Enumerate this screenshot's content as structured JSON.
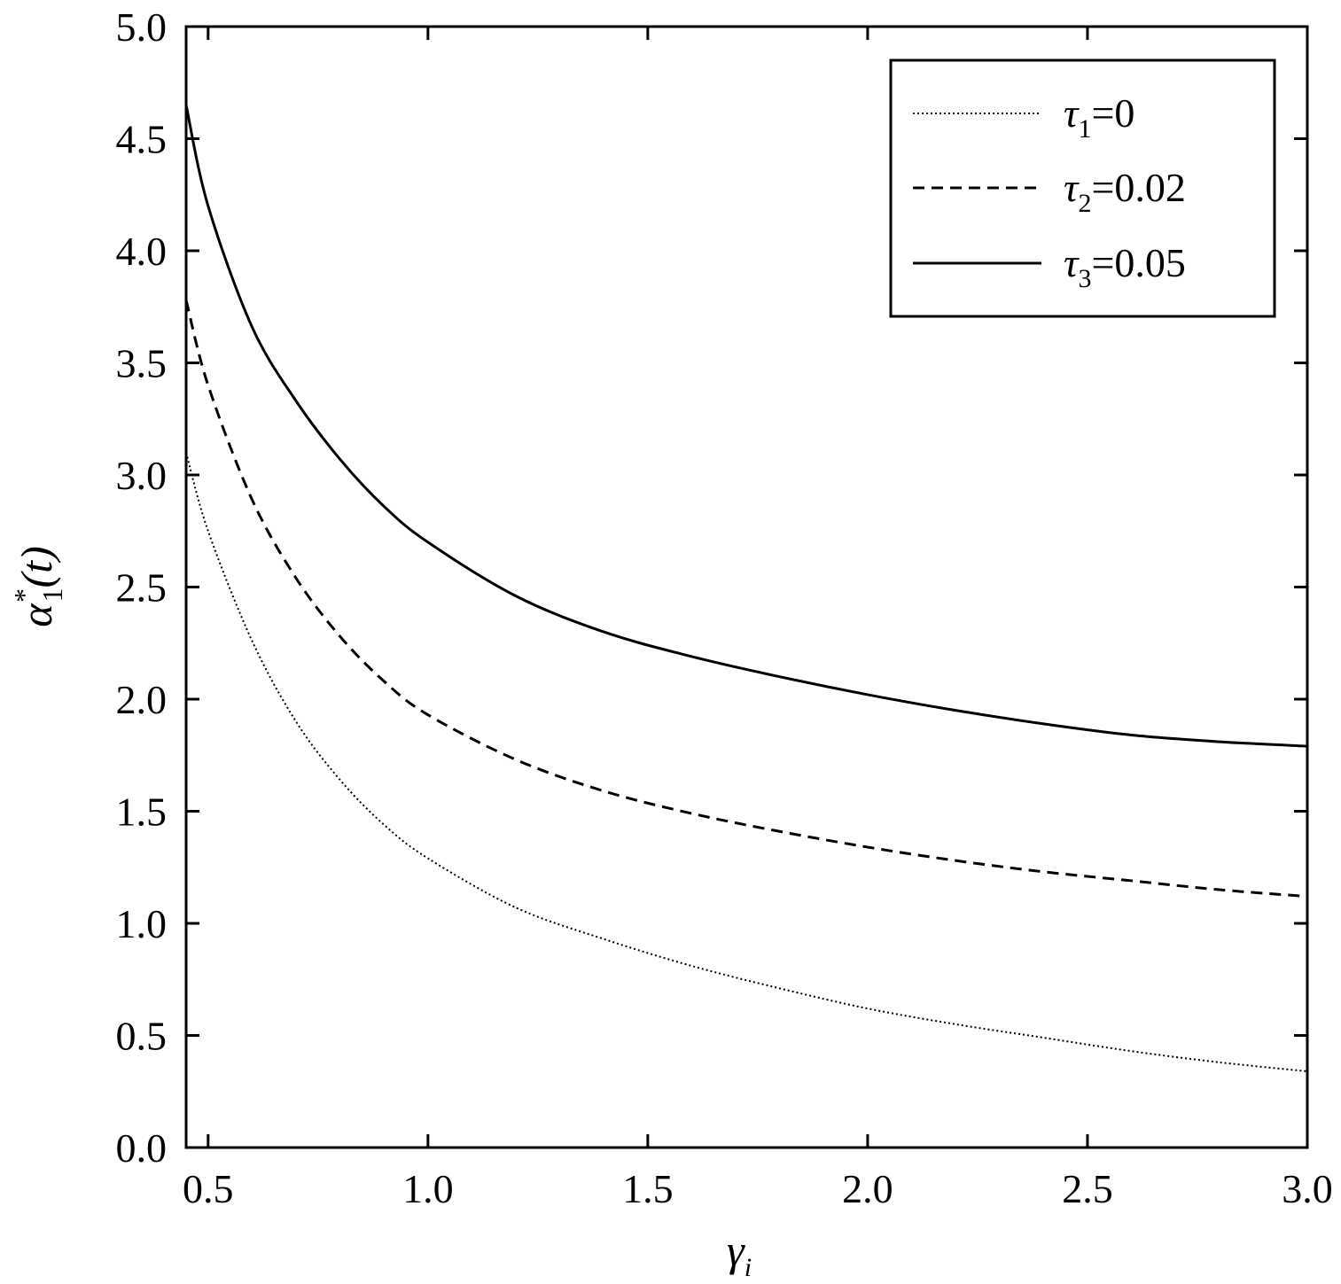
{
  "chart_data": {
    "type": "line",
    "title": "",
    "xlabel": "γ",
    "xlabel_sub": "i",
    "ylabel": "α",
    "ylabel_sup": "*",
    "ylabel_sub": "1",
    "ylabel_tail": "(t)",
    "xlim": [
      0.45,
      3.0
    ],
    "ylim": [
      0.0,
      5.0
    ],
    "xticks": [
      "0.5",
      "1.0",
      "1.5",
      "2.0",
      "2.5",
      "3.0"
    ],
    "yticks": [
      "0.0",
      "0.5",
      "1.0",
      "1.5",
      "2.0",
      "2.5",
      "3.0",
      "3.5",
      "4.0",
      "4.5",
      "5.0"
    ],
    "grid": false,
    "legend_position": "top-right",
    "series": [
      {
        "name": "τ1=0",
        "name_symbol": "τ",
        "name_sub": "1",
        "name_value": "=0",
        "style": "dotted",
        "x": [
          0.45,
          0.5,
          0.6,
          0.7,
          0.8,
          0.9,
          1.0,
          1.2,
          1.4,
          1.6,
          1.8,
          2.0,
          2.2,
          2.4,
          2.6,
          2.8,
          3.0
        ],
        "y": [
          3.1,
          2.75,
          2.26,
          1.9,
          1.64,
          1.44,
          1.29,
          1.07,
          0.93,
          0.81,
          0.71,
          0.62,
          0.55,
          0.49,
          0.43,
          0.38,
          0.34
        ]
      },
      {
        "name": "τ2=0.02",
        "name_symbol": "τ",
        "name_sub": "2",
        "name_value": "=0.02",
        "style": "dashed",
        "x": [
          0.45,
          0.5,
          0.6,
          0.7,
          0.8,
          0.9,
          1.0,
          1.2,
          1.4,
          1.6,
          1.8,
          2.0,
          2.2,
          2.4,
          2.6,
          2.8,
          3.0
        ],
        "y": [
          3.78,
          3.4,
          2.89,
          2.54,
          2.28,
          2.08,
          1.93,
          1.73,
          1.59,
          1.49,
          1.41,
          1.34,
          1.28,
          1.23,
          1.19,
          1.15,
          1.12
        ]
      },
      {
        "name": "τ3=0.05",
        "name_symbol": "τ",
        "name_sub": "3",
        "name_value": "=0.05",
        "style": "solid",
        "x": [
          0.45,
          0.5,
          0.6,
          0.7,
          0.8,
          0.9,
          1.0,
          1.2,
          1.4,
          1.6,
          1.8,
          2.0,
          2.2,
          2.4,
          2.6,
          2.8,
          3.0
        ],
        "y": [
          4.65,
          4.2,
          3.66,
          3.33,
          3.07,
          2.86,
          2.7,
          2.46,
          2.3,
          2.19,
          2.1,
          2.02,
          1.95,
          1.89,
          1.84,
          1.81,
          1.79
        ]
      }
    ]
  }
}
